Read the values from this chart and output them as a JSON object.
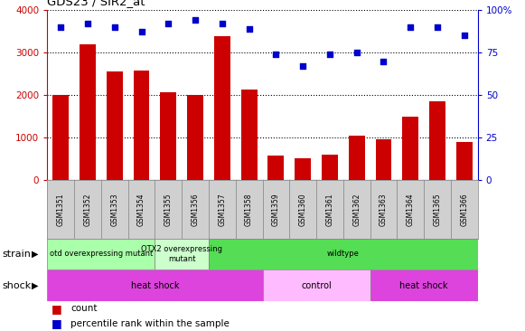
{
  "title": "GDS23 / SIR2_at",
  "samples": [
    "GSM1351",
    "GSM1352",
    "GSM1353",
    "GSM1354",
    "GSM1355",
    "GSM1356",
    "GSM1357",
    "GSM1358",
    "GSM1359",
    "GSM1360",
    "GSM1361",
    "GSM1362",
    "GSM1363",
    "GSM1364",
    "GSM1365",
    "GSM1366"
  ],
  "counts": [
    2000,
    3200,
    2550,
    2570,
    2070,
    2000,
    3380,
    2130,
    580,
    520,
    600,
    1050,
    970,
    1490,
    1860,
    900
  ],
  "percentiles": [
    90,
    92,
    90,
    87,
    92,
    94,
    92,
    89,
    74,
    67,
    74,
    75,
    70,
    90,
    90,
    85
  ],
  "ylim_left": [
    0,
    4000
  ],
  "ylim_right": [
    0,
    100
  ],
  "yticks_left": [
    0,
    1000,
    2000,
    3000,
    4000
  ],
  "yticks_right": [
    0,
    25,
    50,
    75,
    100
  ],
  "yticklabels_right": [
    "0",
    "25",
    "50",
    "75",
    "100%"
  ],
  "bar_color": "#cc0000",
  "scatter_color": "#0000cc",
  "grid_color": "black",
  "sample_bg_color": "#d0d0d0",
  "strain_groups": [
    {
      "label": "otd overexpressing mutant",
      "start": 0,
      "end": 4,
      "color": "#aaffaa"
    },
    {
      "label": "OTX2 overexpressing\nmutant",
      "start": 4,
      "end": 6,
      "color": "#ccffcc"
    },
    {
      "label": "wildtype",
      "start": 6,
      "end": 16,
      "color": "#55dd55"
    }
  ],
  "shock_groups": [
    {
      "label": "heat shock",
      "start": 0,
      "end": 8,
      "color": "#dd44dd"
    },
    {
      "label": "control",
      "start": 8,
      "end": 12,
      "color": "#ffbbff"
    },
    {
      "label": "heat shock",
      "start": 12,
      "end": 16,
      "color": "#dd44dd"
    }
  ],
  "strain_label": "strain",
  "shock_label": "shock",
  "legend_count_label": "count",
  "legend_pct_label": "percentile rank within the sample",
  "fig_width": 5.81,
  "fig_height": 3.66,
  "dpi": 100
}
